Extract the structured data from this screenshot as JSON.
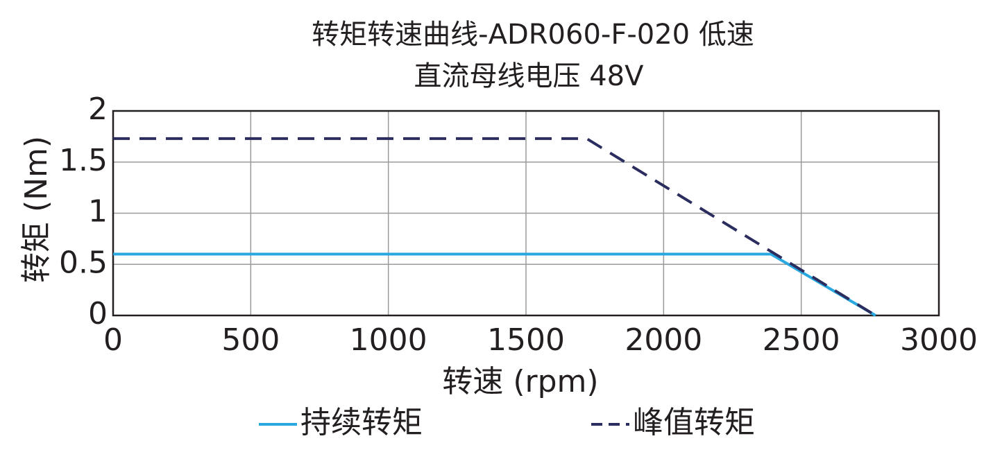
{
  "chart_data": {
    "type": "line",
    "title": "转矩转速曲线-ADR060-F-020 低速",
    "subtitle": "直流母线电压 48V",
    "x_label": "转速 (rpm)",
    "y_label": "转矩 (Nm)",
    "xlim": [
      0,
      3000
    ],
    "xticks": [
      0,
      500,
      1000,
      1500,
      2000,
      2500,
      3000
    ],
    "ylim": [
      0,
      2
    ],
    "yticks": [
      0,
      0.5,
      1,
      1.5,
      2
    ],
    "grid": true,
    "series": [
      {
        "name": "持续转矩",
        "color": "#29a8e0",
        "dash": false,
        "x": [
          0,
          2390,
          2770
        ],
        "values": [
          0.6,
          0.6,
          0
        ]
      },
      {
        "name": "峰值转矩",
        "color": "#2b2d5e",
        "dash": true,
        "x": [
          0,
          1720,
          2770
        ],
        "values": [
          1.73,
          1.73,
          0
        ]
      }
    ]
  }
}
